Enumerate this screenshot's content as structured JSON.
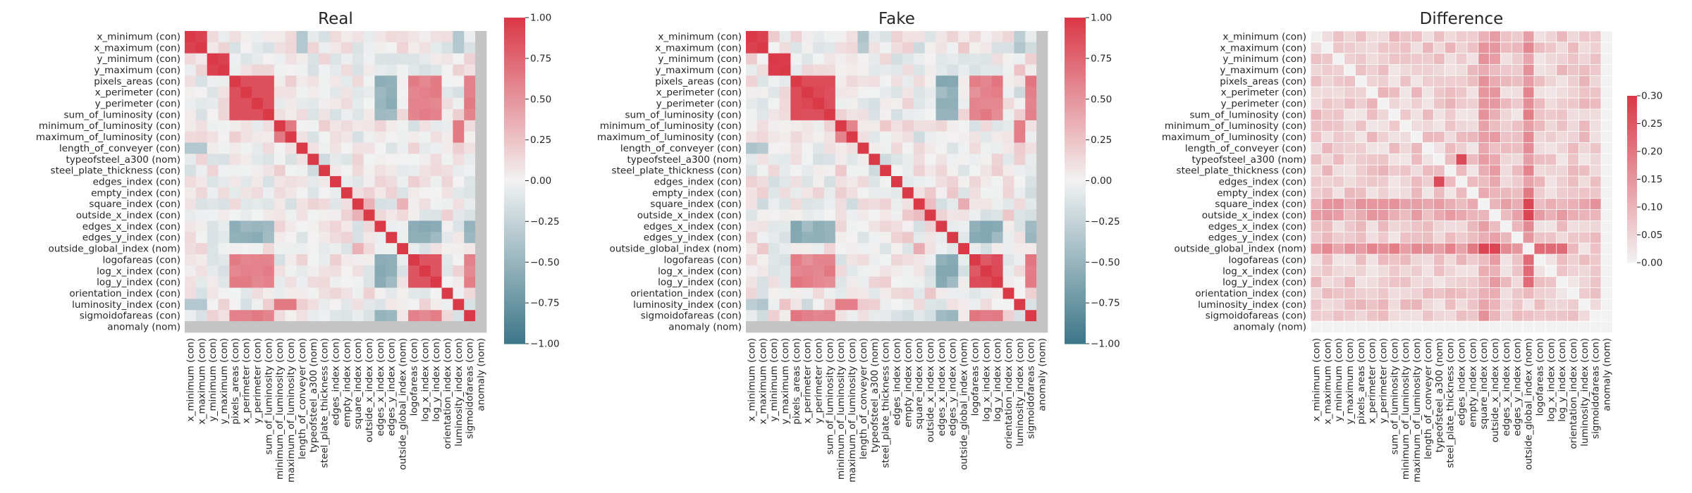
{
  "chart_data": [
    {
      "type": "heatmap",
      "title": "Real",
      "labels": [
        "x_minimum (con)",
        "x_maximum (con)",
        "y_minimum (con)",
        "y_maximum (con)",
        "pixels_areas (con)",
        "x_perimeter (con)",
        "y_perimeter (con)",
        "sum_of_luminosity (con)",
        "minimum_of_luminosity (con)",
        "maximum_of_luminosity (con)",
        "length_of_conveyer (con)",
        "typeofsteel_a300 (nom)",
        "steel_plate_thickness (con)",
        "edges_index (con)",
        "empty_index (con)",
        "square_index (con)",
        "outside_x_index (con)",
        "edges_x_index (con)",
        "edges_y_index (con)",
        "outside_global_index (nom)",
        "logofareas (con)",
        "log_x_index (con)",
        "log_y_index (con)",
        "orientation_index (con)",
        "luminosity_index (con)",
        "sigmoidofareas (con)",
        "anomaly (nom)"
      ],
      "colorbar": {
        "min": -1.0,
        "max": 1.0,
        "ticks": [
          "1.00",
          "0.75",
          "0.50",
          "0.25",
          "0.00",
          "−0.25",
          "−0.50",
          "−0.75",
          "−1.00"
        ]
      },
      "colormap": "diverging blue-white-red",
      "masked_row_col": "anomaly (nom)"
    },
    {
      "type": "heatmap",
      "title": "Fake",
      "labels": [
        "x_minimum (con)",
        "x_maximum (con)",
        "y_minimum (con)",
        "y_maximum (con)",
        "pixels_areas (con)",
        "x_perimeter (con)",
        "y_perimeter (con)",
        "sum_of_luminosity (con)",
        "minimum_of_luminosity (con)",
        "maximum_of_luminosity (con)",
        "length_of_conveyer (con)",
        "typeofsteel_a300 (nom)",
        "steel_plate_thickness (con)",
        "edges_index (con)",
        "empty_index (con)",
        "square_index (con)",
        "outside_x_index (con)",
        "edges_x_index (con)",
        "edges_y_index (con)",
        "outside_global_index (nom)",
        "logofareas (con)",
        "log_x_index (con)",
        "log_y_index (con)",
        "orientation_index (con)",
        "luminosity_index (con)",
        "sigmoidofareas (con)",
        "anomaly (nom)"
      ],
      "colorbar": {
        "min": -1.0,
        "max": 1.0,
        "ticks": [
          "1.00",
          "0.75",
          "0.50",
          "0.25",
          "0.00",
          "−0.25",
          "−0.50",
          "−0.75",
          "−1.00"
        ]
      },
      "colormap": "diverging blue-white-red",
      "masked_row_col": "anomaly (nom)"
    },
    {
      "type": "heatmap",
      "title": "Difference",
      "labels": [
        "x_minimum (con)",
        "x_maximum (con)",
        "y_minimum (con)",
        "y_maximum (con)",
        "pixels_areas (con)",
        "x_perimeter (con)",
        "y_perimeter (con)",
        "sum_of_luminosity (con)",
        "minimum_of_luminosity (con)",
        "maximum_of_luminosity (con)",
        "length_of_conveyer (con)",
        "typeofsteel_a300 (nom)",
        "steel_plate_thickness (con)",
        "edges_index (con)",
        "empty_index (con)",
        "square_index (con)",
        "outside_x_index (con)",
        "edges_x_index (con)",
        "edges_y_index (con)",
        "outside_global_index (nom)",
        "logofareas (con)",
        "log_x_index (con)",
        "log_y_index (con)",
        "orientation_index (con)",
        "luminosity_index (con)",
        "sigmoidofareas (con)",
        "anomaly (nom)"
      ],
      "colorbar": {
        "min": 0.0,
        "max": 0.3,
        "ticks": [
          "0.30",
          "0.25",
          "0.20",
          "0.15",
          "0.10",
          "0.05",
          "0.00"
        ]
      },
      "colormap": "white-to-red"
    }
  ]
}
